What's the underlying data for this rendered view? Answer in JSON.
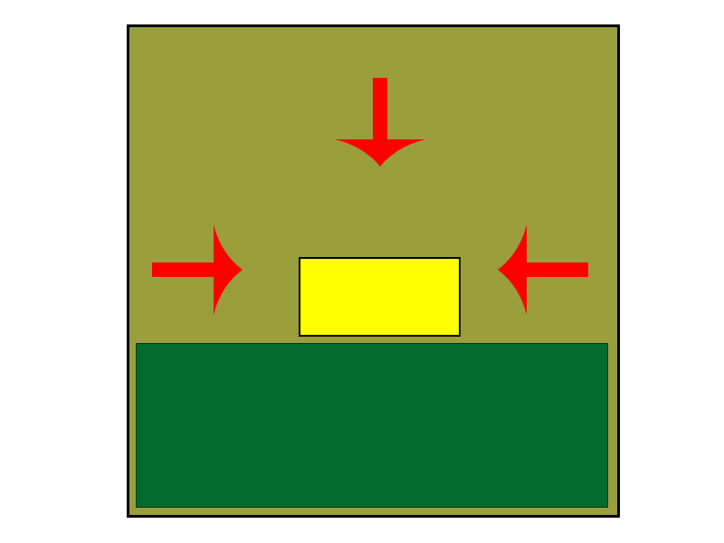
{
  "colors": {
    "background": "#ffffff",
    "frame_border": "#000000",
    "field": "#9a9e3d",
    "ground": "#036b2e",
    "block": "#ffff00",
    "arrows": "#ff0000"
  },
  "elements": {
    "frame": {
      "shape": "square"
    },
    "ground": {
      "shape": "rectangle"
    },
    "block": {
      "shape": "rectangle"
    },
    "arrows": [
      {
        "name": "arrow-top",
        "direction": "down"
      },
      {
        "name": "arrow-left",
        "direction": "right"
      },
      {
        "name": "arrow-right",
        "direction": "left"
      }
    ]
  }
}
